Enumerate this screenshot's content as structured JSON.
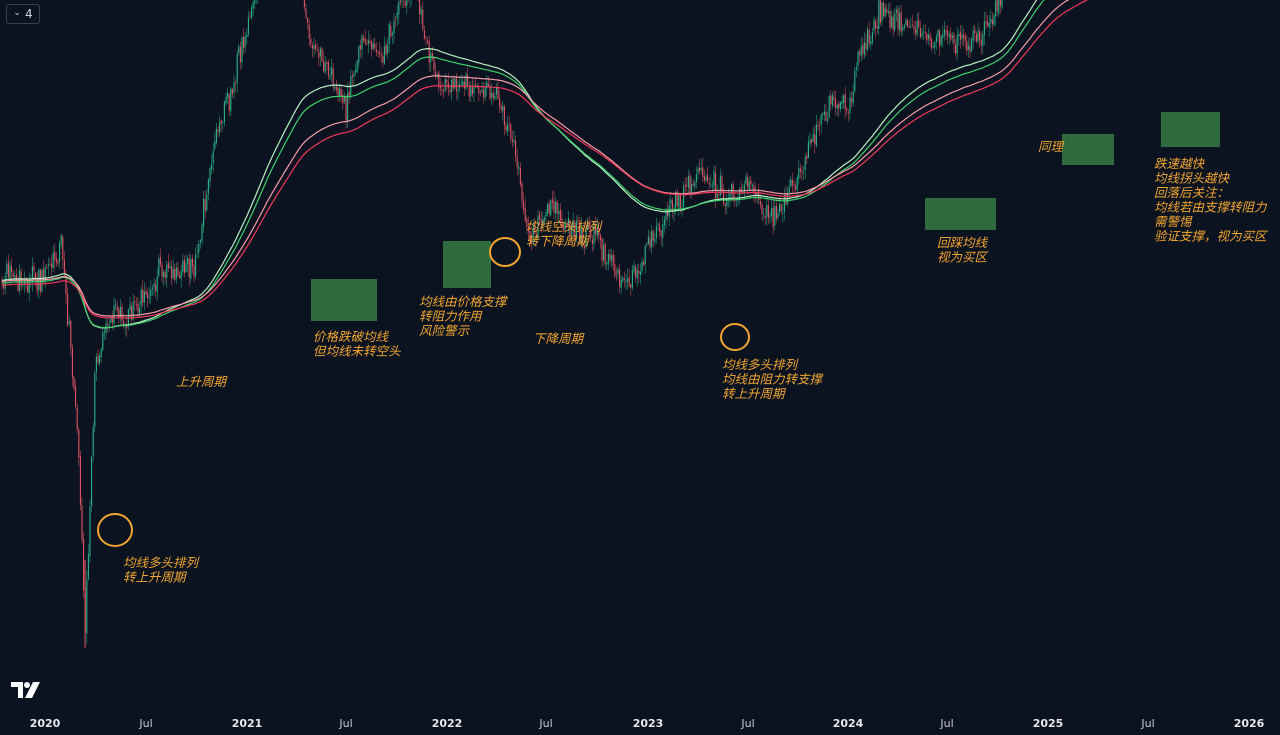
{
  "toolbar": {
    "collapse_label": "4",
    "collapse_icon": "chevron-down-icon"
  },
  "logo": {
    "name": "tradingview-logo"
  },
  "colors": {
    "background": "#0b1320",
    "candle_up": "#2bb48a",
    "candle_down": "#e45563",
    "ma_green": "#3fcf6a",
    "ma_light_green": "#b6f0c0",
    "ma_red": "#f0395a",
    "ma_pink": "#f59aa8",
    "annotation": "#f2a531",
    "highlight_box": "#3b8c48"
  },
  "chart_data": {
    "type": "candlestick",
    "title": "",
    "x_axis": {
      "ticks": [
        "2020",
        "Jul",
        "2021",
        "Jul",
        "2022",
        "Jul",
        "2023",
        "Jul",
        "2024",
        "Jul",
        "2025",
        "Jul",
        "2026"
      ],
      "range": [
        "2020-01",
        "2026-01"
      ]
    },
    "y_axis": {
      "visible": false,
      "scale": "log"
    },
    "grid": false,
    "price_path": [
      [
        "2020-01",
        0.38
      ],
      [
        "2020-02",
        0.33
      ],
      [
        "2020-03",
        0.61
      ],
      [
        "2020-03-13",
        0.86
      ],
      [
        "2020-04",
        0.5
      ],
      [
        "2020-05",
        0.42
      ],
      [
        "2020-06",
        0.43
      ],
      [
        "2020-07",
        0.4
      ],
      [
        "2020-08",
        0.36
      ],
      [
        "2020-09",
        0.37
      ],
      [
        "2020-10",
        0.36
      ],
      [
        "2020-11",
        0.21
      ],
      [
        "2020-12",
        0.13
      ],
      [
        "2021-01",
        0.05
      ],
      [
        "2021-02",
        -0.04
      ],
      [
        "2021-03",
        -0.04
      ],
      [
        "2021-04",
        -0.07
      ],
      [
        "2021-05",
        0.07
      ],
      [
        "2021-06",
        0.1
      ],
      [
        "2021-07",
        0.15
      ],
      [
        "2021-08",
        0.04
      ],
      [
        "2021-09",
        0.09
      ],
      [
        "2021-10",
        0.02
      ],
      [
        "2021-11",
        -0.03
      ],
      [
        "2021-12",
        0.08
      ],
      [
        "2022-01",
        0.12
      ],
      [
        "2022-02",
        0.11
      ],
      [
        "2022-03",
        0.12
      ],
      [
        "2022-04",
        0.13
      ],
      [
        "2022-05",
        0.2
      ],
      [
        "2022-06",
        0.32
      ],
      [
        "2022-07",
        0.28
      ],
      [
        "2022-08",
        0.3
      ],
      [
        "2022-09",
        0.32
      ],
      [
        "2022-10",
        0.32
      ],
      [
        "2022-11",
        0.37
      ],
      [
        "2022-12",
        0.38
      ],
      [
        "2023-01",
        0.34
      ],
      [
        "2023-02",
        0.3
      ],
      [
        "2023-03",
        0.27
      ],
      [
        "2023-04",
        0.24
      ],
      [
        "2023-05",
        0.25
      ],
      [
        "2023-06",
        0.27
      ],
      [
        "2023-07",
        0.25
      ],
      [
        "2023-08",
        0.29
      ],
      [
        "2023-09",
        0.29
      ],
      [
        "2023-10",
        0.24
      ],
      [
        "2023-11",
        0.19
      ],
      [
        "2023-12",
        0.14
      ],
      [
        "2024-01",
        0.14
      ],
      [
        "2024-02",
        0.06
      ],
      [
        "2024-03",
        0.01
      ],
      [
        "2024-04",
        0.03
      ],
      [
        "2024-05",
        0.04
      ],
      [
        "2024-06",
        0.06
      ],
      [
        "2024-07",
        0.05
      ],
      [
        "2024-08",
        0.06
      ],
      [
        "2024-09",
        0.05
      ],
      [
        "2024-10",
        0.01
      ],
      [
        "2024-11",
        -0.13
      ],
      [
        "2024-12",
        -0.17
      ],
      [
        "2025-01",
        -0.17
      ],
      [
        "2025-02",
        -0.11
      ],
      [
        "2025-03",
        -0.09
      ],
      [
        "2025-04",
        -0.09
      ],
      [
        "2025-05",
        -0.19
      ],
      [
        "2025-06",
        -0.21
      ],
      [
        "2025-07",
        -0.22
      ],
      [
        "2025-08",
        -0.24
      ],
      [
        "2025-08-20",
        -0.21
      ]
    ],
    "series": [
      {
        "role": "price",
        "kind": "candles"
      },
      {
        "role": "ma",
        "kind": "line",
        "color": "ma_green"
      },
      {
        "role": "ma",
        "kind": "line",
        "color": "ma_light_green"
      },
      {
        "role": "ma",
        "kind": "line",
        "color": "ma_red"
      },
      {
        "role": "ma",
        "kind": "line",
        "color": "ma_pink"
      }
    ],
    "highlight_boxes": [
      {
        "start": "2021-05",
        "end": "2021-08"
      },
      {
        "start": "2022-01",
        "end": "2022-04"
      },
      {
        "start": "2024-06",
        "end": "2024-09"
      },
      {
        "start": "2025-02",
        "end": "2025-05"
      },
      {
        "start": "2025-08",
        "end": "2025-11"
      }
    ],
    "circle_markers": [
      {
        "date": "2020-06"
      },
      {
        "date": "2022-04"
      },
      {
        "date": "2023-06"
      }
    ],
    "annotations": [
      {
        "lines": [
          "均线多头排列",
          "转上升周期"
        ]
      },
      {
        "lines": [
          "上升周期"
        ]
      },
      {
        "lines": [
          "价格跌破均线",
          "但均线未转空头"
        ]
      },
      {
        "lines": [
          "均线由价格支撑",
          "转阻力作用",
          "风险警示"
        ]
      },
      {
        "lines": [
          "均线空头排列",
          "转下降周期"
        ]
      },
      {
        "lines": [
          "下降周期"
        ]
      },
      {
        "lines": [
          "均线多头排列",
          "均线由阻力转支撑",
          "转上升周期"
        ]
      },
      {
        "lines": [
          "回踩均线",
          "视为买区"
        ]
      },
      {
        "lines": [
          "同理"
        ]
      },
      {
        "lines": [
          "跌速越快",
          "均线拐头越快",
          "回落后关注：",
          "均线若由支撑转阻力",
          "需警惕",
          "验证支撑，视为买区"
        ]
      }
    ]
  }
}
